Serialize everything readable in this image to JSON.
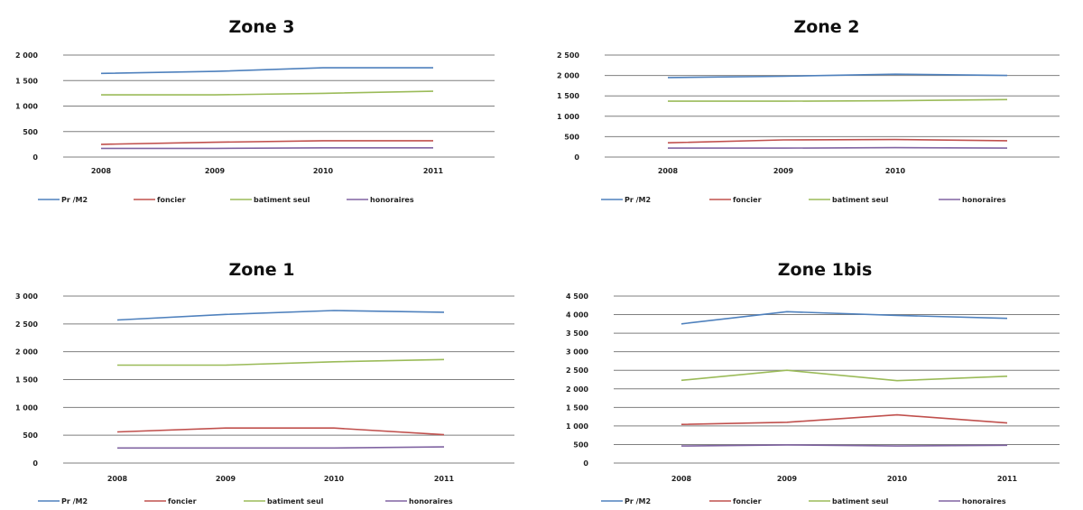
{
  "colors": {
    "series": [
      "#4f81bd",
      "#c0504d",
      "#9bbb59",
      "#8064a2"
    ],
    "gridline": "#7f7f7f"
  },
  "chart_data": [
    {
      "type": "line",
      "title": "Zone 3",
      "categories": [
        "2008",
        "2009",
        "2010",
        "2011"
      ],
      "ylim": [
        0,
        2000
      ],
      "yticks": [
        0,
        500,
        1000,
        1500,
        2000
      ],
      "ytick_labels": [
        "0",
        "500",
        "1 000",
        "1 500",
        "2 000"
      ],
      "grid": true,
      "legend": "bottom",
      "series": [
        {
          "name": "Pr /M2",
          "values": [
            1640,
            1680,
            1750,
            1750
          ]
        },
        {
          "name": "foncier",
          "values": [
            250,
            290,
            320,
            320
          ]
        },
        {
          "name": "batiment seul",
          "values": [
            1220,
            1220,
            1250,
            1290
          ]
        },
        {
          "name": "honoraires",
          "values": [
            170,
            170,
            180,
            180
          ]
        }
      ]
    },
    {
      "type": "line",
      "title": "Zone 2",
      "categories": [
        "2008",
        "2009",
        "2010",
        ""
      ],
      "ylim": [
        0,
        2500
      ],
      "yticks": [
        0,
        500,
        1000,
        1500,
        2000,
        2500
      ],
      "ytick_labels": [
        "0",
        "500",
        "1 000",
        "1 500",
        "2 000",
        "2 500"
      ],
      "grid": true,
      "legend": "bottom",
      "series": [
        {
          "name": "Pr /M2",
          "values": [
            1950,
            1980,
            2030,
            2000
          ]
        },
        {
          "name": "foncier",
          "values": [
            350,
            420,
            430,
            400
          ]
        },
        {
          "name": "batiment seul",
          "values": [
            1370,
            1370,
            1380,
            1410
          ]
        },
        {
          "name": "honoraires",
          "values": [
            220,
            220,
            230,
            220
          ]
        }
      ]
    },
    {
      "type": "line",
      "title": "Zone 1",
      "categories": [
        "2008",
        "2009",
        "2010",
        "2011"
      ],
      "ylim": [
        0,
        3000
      ],
      "yticks": [
        0,
        500,
        1000,
        1500,
        2000,
        2500,
        3000
      ],
      "ytick_labels": [
        "0",
        "500",
        "1 000",
        "1 500",
        "2 000",
        "2 500",
        "3 000"
      ],
      "grid": true,
      "legend": "bottom",
      "series": [
        {
          "name": "Pr /M2",
          "values": [
            2570,
            2670,
            2740,
            2710
          ]
        },
        {
          "name": "foncier",
          "values": [
            560,
            630,
            630,
            510
          ]
        },
        {
          "name": "batiment seul",
          "values": [
            1760,
            1760,
            1820,
            1860
          ]
        },
        {
          "name": "honoraires",
          "values": [
            270,
            270,
            270,
            290
          ]
        }
      ]
    },
    {
      "type": "line",
      "title": "Zone 1bis",
      "categories": [
        "2008",
        "2009",
        "2010",
        "2011"
      ],
      "ylim": [
        0,
        4500
      ],
      "yticks": [
        0,
        500,
        1000,
        1500,
        2000,
        2500,
        3000,
        3500,
        4000,
        4500
      ],
      "ytick_labels": [
        "0",
        "500",
        "1 000",
        "1 500",
        "2 000",
        "2 500",
        "3 000",
        "3 500",
        "4 000",
        "4 500"
      ],
      "grid": true,
      "legend": "bottom",
      "series": [
        {
          "name": "Pr /M2",
          "values": [
            3750,
            4080,
            3980,
            3900
          ]
        },
        {
          "name": "foncier",
          "values": [
            1040,
            1100,
            1300,
            1080
          ]
        },
        {
          "name": "batiment seul",
          "values": [
            2230,
            2500,
            2220,
            2340
          ]
        },
        {
          "name": "honoraires",
          "values": [
            460,
            490,
            460,
            480
          ]
        }
      ]
    }
  ]
}
